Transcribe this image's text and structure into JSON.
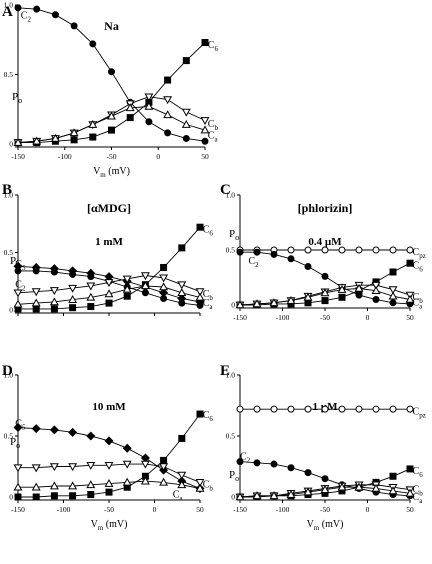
{
  "figure": {
    "panel_labels": [
      "A",
      "B",
      "C",
      "D",
      "E"
    ]
  },
  "chart_data": [
    {
      "id": "A",
      "type": "line",
      "title": "Na",
      "xlabel": "V",
      "xlabel_sub": "m",
      "xlabel_unit": " (mV)",
      "ylabel": "P",
      "ylabel_sub": "o",
      "xlim": [
        -150,
        50
      ],
      "ylim": [
        0,
        1.0
      ],
      "xticks": [
        -150,
        -100,
        -50,
        0,
        50
      ],
      "yticks": [
        0,
        0.5,
        1.0
      ],
      "ytick_labels": [
        "0",
        "0.5",
        "1.0"
      ],
      "x": [
        -150,
        -130,
        -110,
        -90,
        -70,
        -50,
        -30,
        -10,
        10,
        30,
        50
      ],
      "series": [
        {
          "name": "C",
          "sub": "2",
          "marker": "filled-circle",
          "values": [
            0.98,
            0.97,
            0.93,
            0.85,
            0.72,
            0.52,
            0.3,
            0.16,
            0.08,
            0.04,
            0.02
          ],
          "label_pos": [
            -147,
            0.93
          ]
        },
        {
          "name": "C",
          "sub": "6",
          "marker": "filled-square",
          "values": [
            0.01,
            0.01,
            0.02,
            0.03,
            0.05,
            0.1,
            0.19,
            0.3,
            0.46,
            0.6,
            0.73
          ],
          "label_pos": [
            53,
            0.72
          ]
        },
        {
          "name": "C",
          "sub": "b",
          "marker": "open-down-triangle",
          "values": [
            0.01,
            0.02,
            0.04,
            0.08,
            0.14,
            0.21,
            0.29,
            0.34,
            0.32,
            0.23,
            0.17
          ],
          "label_pos": [
            53,
            0.15
          ]
        },
        {
          "name": "C",
          "sub": "a",
          "marker": "open-up-triangle",
          "values": [
            0.01,
            0.02,
            0.04,
            0.08,
            0.14,
            0.2,
            0.26,
            0.27,
            0.21,
            0.14,
            0.1
          ],
          "label_pos": [
            53,
            0.07
          ]
        }
      ]
    },
    {
      "id": "B",
      "type": "line",
      "title": "[αMDG]",
      "subtitle": "1 mM",
      "xlabel": "",
      "ylabel": "P",
      "ylabel_sub": "o",
      "xlim": [
        -150,
        50
      ],
      "ylim": [
        0,
        1.0
      ],
      "xticks": [
        -150,
        -100,
        -50,
        0,
        50
      ],
      "yticks": [
        0,
        0.5,
        1.0
      ],
      "ytick_labels": [
        "0",
        "0.5",
        "1.0"
      ],
      "x": [
        -150,
        -130,
        -110,
        -90,
        -70,
        -50,
        -30,
        -10,
        10,
        30,
        50
      ],
      "series": [
        {
          "name": "C",
          "sub": "5",
          "marker": "filled-diamond",
          "values": [
            0.38,
            0.37,
            0.36,
            0.34,
            0.32,
            0.29,
            0.25,
            0.2,
            0.15,
            0.1,
            0.07
          ],
          "label_pos": [
            -153,
            0.41
          ]
        },
        {
          "name": "C",
          "sub": "2",
          "marker": "filled-circle",
          "values": [
            0.34,
            0.34,
            0.33,
            0.31,
            0.29,
            0.25,
            0.2,
            0.15,
            0.1,
            0.06,
            0.04
          ],
          "label_pos": [
            -153,
            0.23
          ]
        },
        {
          "name": "C",
          "sub": "6",
          "marker": "filled-square",
          "values": [
            0.01,
            0.01,
            0.01,
            0.02,
            0.03,
            0.06,
            0.12,
            0.22,
            0.37,
            0.54,
            0.72
          ],
          "label_pos": [
            53,
            0.71
          ]
        },
        {
          "name": "C",
          "sub": "b",
          "marker": "open-down-triangle",
          "values": [
            0.15,
            0.16,
            0.17,
            0.19,
            0.21,
            0.24,
            0.27,
            0.3,
            0.28,
            0.22,
            0.16
          ],
          "label_pos": [
            53,
            0.15
          ]
        },
        {
          "name": "C",
          "sub": "a",
          "marker": "open-up-triangle",
          "values": [
            0.05,
            0.06,
            0.07,
            0.09,
            0.11,
            0.14,
            0.18,
            0.21,
            0.2,
            0.15,
            0.11
          ],
          "label_pos": [
            53,
            0.07
          ]
        }
      ]
    },
    {
      "id": "C",
      "type": "line",
      "title": "[phlorizin]",
      "subtitle": "0.4 µM",
      "xlabel": "",
      "ylabel": "P",
      "ylabel_sub": "o",
      "xlim": [
        -150,
        50
      ],
      "ylim": [
        0,
        1.0
      ],
      "xticks": [
        -150,
        -100,
        -50,
        0,
        50
      ],
      "yticks": [
        0,
        0.5,
        1.0
      ],
      "ytick_labels": [
        "0",
        "0.5",
        "1.0"
      ],
      "x": [
        -150,
        -130,
        -110,
        -90,
        -70,
        -50,
        -30,
        -10,
        10,
        30,
        50
      ],
      "series": [
        {
          "name": "C",
          "sub": "pz",
          "marker": "open-circle",
          "values": [
            0.5,
            0.5,
            0.5,
            0.5,
            0.5,
            0.5,
            0.5,
            0.5,
            0.5,
            0.5,
            0.5
          ],
          "label_pos": [
            53,
            0.49
          ]
        },
        {
          "name": "C",
          "sub": "2",
          "marker": "filled-circle",
          "values": [
            0.48,
            0.48,
            0.46,
            0.42,
            0.35,
            0.26,
            0.16,
            0.09,
            0.05,
            0.02,
            0.01
          ],
          "label_pos": [
            -140,
            0.41
          ]
        },
        {
          "name": "C",
          "sub": "6",
          "marker": "filled-square",
          "values": [
            0.0,
            0.0,
            0.01,
            0.01,
            0.02,
            0.04,
            0.07,
            0.13,
            0.21,
            0.3,
            0.38
          ],
          "label_pos": [
            53,
            0.37
          ]
        },
        {
          "name": "C",
          "sub": "b",
          "marker": "open-down-triangle",
          "values": [
            0.0,
            0.01,
            0.02,
            0.04,
            0.08,
            0.12,
            0.16,
            0.18,
            0.18,
            0.14,
            0.09
          ],
          "label_pos": [
            53,
            0.08
          ]
        },
        {
          "name": "C",
          "sub": "a",
          "marker": "open-up-triangle",
          "values": [
            0.0,
            0.01,
            0.02,
            0.04,
            0.07,
            0.11,
            0.14,
            0.15,
            0.13,
            0.08,
            0.05
          ],
          "label_pos": [
            53,
            0.03
          ]
        }
      ]
    },
    {
      "id": "D",
      "type": "line",
      "title": "10 mM",
      "xlabel": "V",
      "xlabel_sub": "m",
      "xlabel_unit": " (mV)",
      "ylabel": "P",
      "ylabel_sub": "o",
      "xlim": [
        -150,
        50
      ],
      "ylim": [
        0,
        1.0
      ],
      "xticks": [
        -150,
        -100,
        -50,
        0,
        50
      ],
      "yticks": [
        0,
        0.5,
        1.0
      ],
      "ytick_labels": [
        "0",
        "0.5",
        "1.0"
      ],
      "x": [
        -150,
        -130,
        -110,
        -90,
        -70,
        -50,
        -30,
        -10,
        10,
        30,
        50
      ],
      "series": [
        {
          "name": "C",
          "sub": "5",
          "marker": "filled-diamond",
          "values": [
            0.57,
            0.56,
            0.55,
            0.53,
            0.5,
            0.46,
            0.4,
            0.32,
            0.22,
            0.13,
            0.07
          ],
          "label_pos": [
            -153,
            0.61
          ]
        },
        {
          "name": "C",
          "sub": "6",
          "marker": "filled-square",
          "values": [
            0.0,
            0.0,
            0.01,
            0.01,
            0.02,
            0.04,
            0.08,
            0.17,
            0.3,
            0.48,
            0.68
          ],
          "label_pos": [
            53,
            0.68
          ]
        },
        {
          "name": "C",
          "sub": "b",
          "marker": "open-down-triangle",
          "values": [
            0.24,
            0.24,
            0.25,
            0.25,
            0.26,
            0.26,
            0.27,
            0.27,
            0.25,
            0.18,
            0.12
          ],
          "label_pos": [
            53,
            0.11
          ]
        },
        {
          "name": "C",
          "sub": "a",
          "marker": "open-up-triangle",
          "values": [
            0.08,
            0.08,
            0.09,
            0.09,
            0.1,
            0.11,
            0.12,
            0.13,
            0.12,
            0.1,
            0.07
          ],
          "label_pos": [
            20,
            0.03
          ]
        }
      ]
    },
    {
      "id": "E",
      "type": "line",
      "title": "1 µM",
      "xlabel": "V",
      "xlabel_sub": "m",
      "xlabel_unit": " (mV)",
      "ylabel": "P",
      "ylabel_sub": "o",
      "xlim": [
        -150,
        50
      ],
      "ylim": [
        0,
        1.0
      ],
      "xticks": [
        -150,
        -100,
        -50,
        0,
        50
      ],
      "yticks": [
        0,
        0.5,
        1.0
      ],
      "ytick_labels": [
        "0",
        "0.5",
        "1.0"
      ],
      "x": [
        -150,
        -130,
        -110,
        -90,
        -70,
        -50,
        -30,
        -10,
        10,
        30,
        50
      ],
      "series": [
        {
          "name": "C",
          "sub": "pz",
          "marker": "open-circle",
          "values": [
            0.72,
            0.72,
            0.72,
            0.72,
            0.72,
            0.72,
            0.72,
            0.72,
            0.72,
            0.72,
            0.72
          ],
          "label_pos": [
            53,
            0.71
          ]
        },
        {
          "name": "C",
          "sub": "2",
          "marker": "filled-circle",
          "values": [
            0.29,
            0.28,
            0.27,
            0.24,
            0.2,
            0.15,
            0.1,
            0.07,
            0.04,
            0.02,
            0.01
          ],
          "label_pos": [
            -150,
            0.34
          ]
        },
        {
          "name": "C",
          "sub": "6",
          "marker": "filled-square",
          "values": [
            0.0,
            0.0,
            0.01,
            0.01,
            0.02,
            0.03,
            0.05,
            0.08,
            0.12,
            0.17,
            0.23
          ],
          "label_pos": [
            53,
            0.22
          ]
        },
        {
          "name": "C",
          "sub": "b",
          "marker": "open-down-triangle",
          "values": [
            0.0,
            0.01,
            0.01,
            0.03,
            0.05,
            0.07,
            0.09,
            0.1,
            0.1,
            0.08,
            0.06
          ],
          "label_pos": [
            53,
            0.07
          ]
        },
        {
          "name": "C",
          "sub": "a",
          "marker": "open-up-triangle",
          "values": [
            0.0,
            0.01,
            0.01,
            0.02,
            0.04,
            0.06,
            0.08,
            0.08,
            0.07,
            0.05,
            0.03
          ],
          "label_pos": [
            53,
            0.01
          ]
        }
      ]
    }
  ]
}
